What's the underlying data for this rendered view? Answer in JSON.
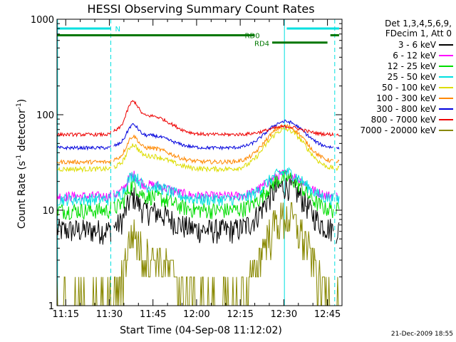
{
  "chart_data": {
    "type": "line",
    "title": "HESSI Observing Summary Count Rates",
    "xlabel": "Start Time (04-Sep-08 11:12:02)",
    "ylabel_main": "Count Rate (s",
    "ylabel_sup1": "-1",
    "ylabel_mid": " detector",
    "ylabel_sup2": "-1",
    "ylabel_end": ")",
    "yscale": "log",
    "ylim": [
      1,
      1000
    ],
    "xlim_minutes": [
      672,
      770
    ],
    "xtick_labels": [
      "11:15",
      "11:30",
      "11:45",
      "12:00",
      "12:15",
      "12:30",
      "12:45"
    ],
    "xtick_minutes": [
      675,
      690,
      705,
      720,
      735,
      750,
      765
    ],
    "ytick_labels": [
      "1",
      "10",
      "100",
      "1000"
    ],
    "ytick_values": [
      1,
      10,
      100,
      1000
    ],
    "vertical_markers": {
      "dashed_minutes": [
        690.5,
        767.5
      ],
      "solid_minutes": [
        672.2,
        750.2
      ],
      "color": "#00e0e0"
    },
    "flags": [
      {
        "label": "N",
        "color": "#00e0e0",
        "level": 800,
        "segments": [
          [
            672,
            690.5
          ],
          [
            751,
            769
          ]
        ]
      },
      {
        "label": "RD0",
        "color": "#007700",
        "level": 680,
        "segments": [
          [
            672,
            740
          ],
          [
            766,
            769
          ]
        ]
      },
      {
        "label": "RD4",
        "color": "#007700",
        "level": 570,
        "segments": [
          [
            746,
            765
          ]
        ]
      }
    ],
    "legend_header": [
      "Det 1,3,4,5,6,9,",
      "FDecim 1, Att 0"
    ],
    "series": [
      {
        "name": "3 - 6 keV",
        "color": "#000000",
        "base": 6.2,
        "peak1": 15,
        "peak2": 18,
        "noise": 0.3
      },
      {
        "name": "6 - 12 keV",
        "color": "#ff00ff",
        "base": 14,
        "peak1": 25,
        "peak2": 24,
        "noise": 0.12
      },
      {
        "name": "12 - 25 keV",
        "color": "#00dd00",
        "base": 10,
        "peak1": 20,
        "peak2": 22,
        "noise": 0.2
      },
      {
        "name": "25 - 50 keV",
        "color": "#00e0e0",
        "base": 13,
        "peak1": 25,
        "peak2": 25,
        "noise": 0.15
      },
      {
        "name": "50 - 100 keV",
        "color": "#dddd00",
        "base": 27,
        "peak1": 52,
        "peak2": 70,
        "noise": 0.06
      },
      {
        "name": "100 - 300 keV",
        "color": "#ff8800",
        "base": 32,
        "peak1": 64,
        "peak2": 76,
        "noise": 0.05
      },
      {
        "name": "300 - 800 keV",
        "color": "#0000dd",
        "base": 45,
        "peak1": 84,
        "peak2": 85,
        "noise": 0.04
      },
      {
        "name": "800 - 7000 keV",
        "color": "#ee0000",
        "base": 62,
        "peak1": 150,
        "peak2": 75,
        "noise": 0.04
      },
      {
        "name": "7000 - 20000 keV",
        "color": "#888800",
        "base": 1.1,
        "peak1": 6.5,
        "peak2": 8.5,
        "noise": 0.5
      }
    ],
    "stamp": "21-Dec-2009 18:55"
  }
}
